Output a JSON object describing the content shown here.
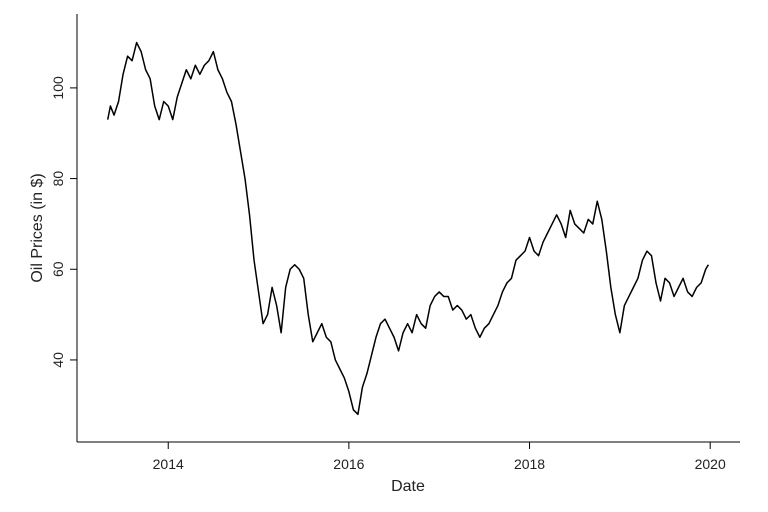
{
  "chart_data": {
    "type": "line",
    "x_label": "Date",
    "y_label": "Oil Prices (in $)",
    "x": [
      2013.33,
      2013.36,
      2013.4,
      2013.45,
      2013.5,
      2013.55,
      2013.6,
      2013.65,
      2013.7,
      2013.75,
      2013.8,
      2013.85,
      2013.9,
      2013.95,
      2014.0,
      2014.05,
      2014.1,
      2014.15,
      2014.2,
      2014.25,
      2014.3,
      2014.35,
      2014.4,
      2014.45,
      2014.5,
      2014.55,
      2014.6,
      2014.65,
      2014.7,
      2014.75,
      2014.8,
      2014.85,
      2014.9,
      2014.95,
      2015.0,
      2015.05,
      2015.1,
      2015.15,
      2015.2,
      2015.25,
      2015.3,
      2015.35,
      2015.4,
      2015.45,
      2015.5,
      2015.55,
      2015.6,
      2015.65,
      2015.7,
      2015.75,
      2015.8,
      2015.85,
      2015.9,
      2015.95,
      2016.0,
      2016.05,
      2016.1,
      2016.15,
      2016.2,
      2016.25,
      2016.3,
      2016.35,
      2016.4,
      2016.45,
      2016.5,
      2016.55,
      2016.6,
      2016.65,
      2016.7,
      2016.75,
      2016.8,
      2016.85,
      2016.9,
      2016.95,
      2017.0,
      2017.05,
      2017.1,
      2017.15,
      2017.2,
      2017.25,
      2017.3,
      2017.35,
      2017.4,
      2017.45,
      2017.5,
      2017.55,
      2017.6,
      2017.65,
      2017.7,
      2017.75,
      2017.8,
      2017.85,
      2017.9,
      2017.95,
      2018.0,
      2018.05,
      2018.1,
      2018.15,
      2018.2,
      2018.25,
      2018.3,
      2018.35,
      2018.4,
      2018.45,
      2018.5,
      2018.55,
      2018.6,
      2018.65,
      2018.7,
      2018.75,
      2018.8,
      2018.85,
      2018.9,
      2018.95,
      2019.0,
      2019.05,
      2019.1,
      2019.15,
      2019.2,
      2019.25,
      2019.3,
      2019.35,
      2019.4,
      2019.45,
      2019.5,
      2019.55,
      2019.6,
      2019.65,
      2019.7,
      2019.75,
      2019.8,
      2019.85,
      2019.9,
      2019.95,
      2019.98
    ],
    "series": [
      {
        "color": "#000000",
        "values": [
          93,
          96,
          94,
          97,
          103,
          107,
          106,
          110,
          108,
          104,
          102,
          96,
          93,
          97,
          96,
          93,
          98,
          101,
          104,
          102,
          105,
          103,
          105,
          106,
          108,
          104,
          102,
          99,
          97,
          92,
          86,
          80,
          72,
          62,
          55,
          48,
          50,
          56,
          52,
          46,
          56,
          60,
          61,
          60,
          58,
          50,
          44,
          46,
          48,
          45,
          44,
          40,
          38,
          36,
          33,
          29,
          28,
          34,
          37,
          41,
          45,
          48,
          49,
          47,
          45,
          42,
          46,
          48,
          46,
          50,
          48,
          47,
          52,
          54,
          55,
          54,
          54,
          51,
          52,
          51,
          49,
          50,
          47,
          45,
          47,
          48,
          50,
          52,
          55,
          57,
          58,
          62,
          63,
          64,
          67,
          64,
          63,
          66,
          68,
          70,
          72,
          70,
          67,
          73,
          70,
          69,
          68,
          71,
          70,
          75,
          71,
          64,
          56,
          50,
          46,
          52,
          54,
          56,
          58,
          62,
          64,
          63,
          57,
          53,
          58,
          57,
          54,
          56,
          58,
          55,
          54,
          56,
          57,
          60,
          61
        ]
      }
    ],
    "xlim": [
      2012.99,
      2020.33
    ],
    "xticks": [
      2014,
      2016,
      2018,
      2020
    ],
    "ylim": [
      21.9,
      116.3
    ],
    "yticks": [
      40,
      60,
      80,
      100
    ]
  }
}
